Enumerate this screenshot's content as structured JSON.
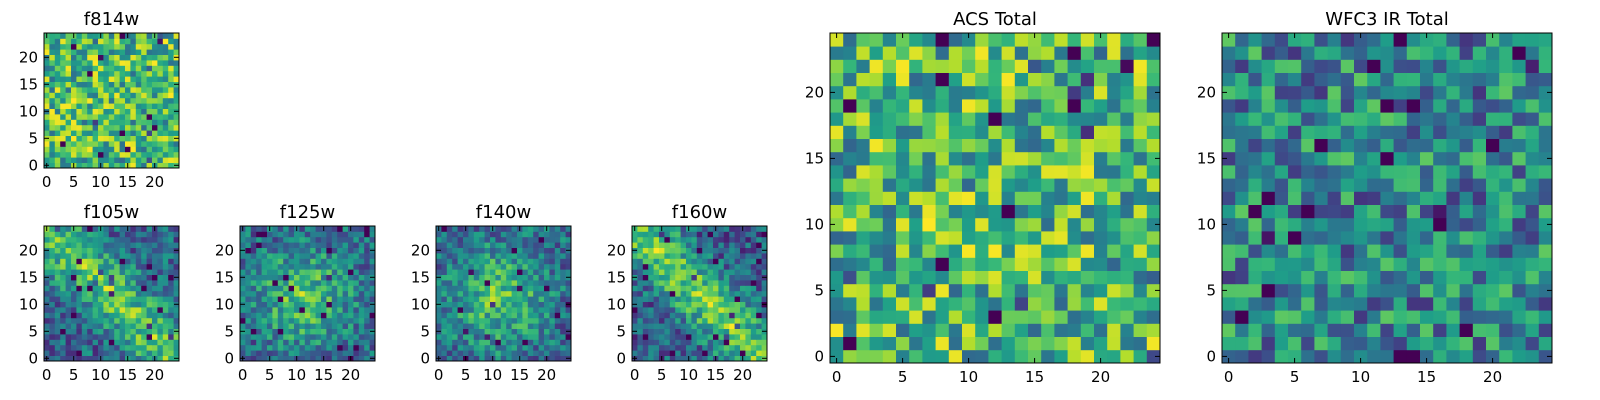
{
  "figure": {
    "layout": "two rows of small filter panels on the left, two large total panels on the right"
  },
  "chart_data": [
    {
      "type": "heatmap",
      "title": "f814w",
      "grid": [
        25,
        25
      ],
      "xlim": [
        -0.5,
        24.5
      ],
      "ylim": [
        -0.5,
        24.5
      ],
      "xticks": [
        0,
        5,
        10,
        15,
        20
      ],
      "yticks": [
        0,
        5,
        10,
        15,
        20
      ],
      "colormap": "viridis",
      "pattern": "noise",
      "seed": 11,
      "offset": 0.68,
      "amp": 0.32
    },
    {
      "type": "heatmap",
      "title": "f105w",
      "grid": [
        25,
        25
      ],
      "xlim": [
        -0.5,
        24.5
      ],
      "ylim": [
        -0.5,
        24.5
      ],
      "xticks": [
        0,
        5,
        10,
        15,
        20
      ],
      "yticks": [
        0,
        5,
        10,
        15,
        20
      ],
      "colormap": "viridis",
      "pattern": "diagonal",
      "seed": 23,
      "offset": 0.55,
      "amp": 0.45
    },
    {
      "type": "heatmap",
      "title": "f125w",
      "grid": [
        25,
        25
      ],
      "xlim": [
        -0.5,
        24.5
      ],
      "ylim": [
        -0.5,
        24.5
      ],
      "xticks": [
        0,
        5,
        10,
        15,
        20
      ],
      "yticks": [
        0,
        5,
        10,
        15,
        20
      ],
      "colormap": "viridis",
      "pattern": "blob",
      "seed": 37,
      "offset": 0.6,
      "amp": 0.4
    },
    {
      "type": "heatmap",
      "title": "f140w",
      "grid": [
        25,
        25
      ],
      "xlim": [
        -0.5,
        24.5
      ],
      "ylim": [
        -0.5,
        24.5
      ],
      "xticks": [
        0,
        5,
        10,
        15,
        20
      ],
      "yticks": [
        0,
        5,
        10,
        15,
        20
      ],
      "colormap": "viridis",
      "pattern": "blob",
      "seed": 53,
      "offset": 0.62,
      "amp": 0.38
    },
    {
      "type": "heatmap",
      "title": "f160w",
      "grid": [
        25,
        25
      ],
      "xlim": [
        -0.5,
        24.5
      ],
      "ylim": [
        -0.5,
        24.5
      ],
      "xticks": [
        0,
        5,
        10,
        15,
        20
      ],
      "yticks": [
        0,
        5,
        10,
        15,
        20
      ],
      "colormap": "viridis",
      "pattern": "diagonal",
      "seed": 71,
      "offset": 0.5,
      "amp": 0.5
    },
    {
      "type": "heatmap",
      "title": "ACS Total",
      "grid": [
        25,
        25
      ],
      "xlim": [
        -0.5,
        24.5
      ],
      "ylim": [
        -0.5,
        24.5
      ],
      "xticks": [
        0,
        5,
        10,
        15,
        20
      ],
      "yticks": [
        0,
        5,
        10,
        15,
        20
      ],
      "colormap": "viridis",
      "pattern": "noise",
      "seed": 89,
      "offset": 0.66,
      "amp": 0.34
    },
    {
      "type": "heatmap",
      "title": "WFC3 IR Total",
      "grid": [
        25,
        25
      ],
      "xlim": [
        -0.5,
        24.5
      ],
      "ylim": [
        -0.5,
        24.5
      ],
      "xticks": [
        0,
        5,
        10,
        15,
        20
      ],
      "yticks": [
        0,
        5,
        10,
        15,
        20
      ],
      "colormap": "viridis",
      "pattern": "noise",
      "seed": 97,
      "offset": 0.45,
      "amp": 0.3
    }
  ]
}
